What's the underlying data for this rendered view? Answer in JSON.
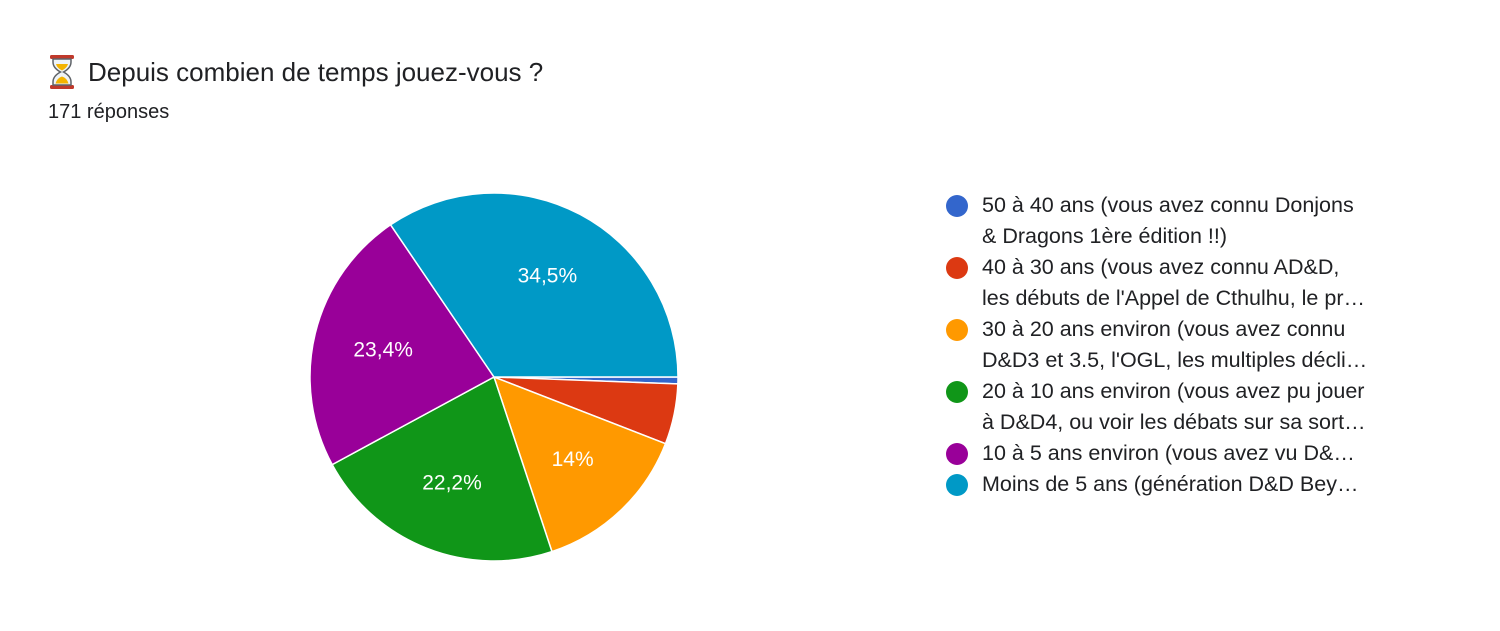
{
  "header": {
    "title": "Depuis combien de temps jouez-vous ?",
    "icon": "hourglass-icon",
    "response_count": "171 réponses"
  },
  "legend": {
    "items": [
      {
        "label": "50 à 40 ans (vous avez connu Donjons\n& Dragons 1ère édition !!)",
        "color": "#3366cc"
      },
      {
        "label": "40 à 30 ans (vous avez connu AD&D,\nles débuts de l'Appel de Cthulhu, le pr…",
        "color": "#dc3912"
      },
      {
        "label": "30 à 20 ans environ (vous avez connu\nD&D3 et 3.5, l'OGL, les multiples décli…",
        "color": "#ff9900"
      },
      {
        "label": "20 à 10 ans environ (vous avez pu jouer\nà D&D4, ou voir les débats sur sa sort…",
        "color": "#109618"
      },
      {
        "label": "10 à 5 ans environ (vous avez vu D&…",
        "color": "#990099"
      },
      {
        "label": "Moins de 5 ans (génération D&D Bey…",
        "color": "#0099c6"
      }
    ]
  },
  "chart_data": {
    "type": "pie",
    "categories": [
      "50 à 40 ans (vous avez connu Donjons & Dragons 1ère édition !!)",
      "40 à 30 ans (vous avez connu AD&D, les débuts de l'Appel de Cthulhu, le pr…",
      "30 à 20 ans environ (vous avez connu D&D3 et 3.5, l'OGL, les multiples décli…",
      "20 à 10 ans environ (vous avez pu jouer à D&D4, ou voir les débats sur sa sort…",
      "10 à 5 ans environ (vous avez vu D&…",
      "Moins de 5 ans (génération D&D Bey…"
    ],
    "values": [
      0.6,
      5.3,
      14,
      22.2,
      23.4,
      34.5
    ],
    "data_labels": [
      "",
      "",
      "14%",
      "22,2%",
      "23,4%",
      "34,5%"
    ],
    "colors": [
      "#3366cc",
      "#dc3912",
      "#ff9900",
      "#109618",
      "#990099",
      "#0099c6"
    ],
    "start": "3 o'clock",
    "direction": "clockwise",
    "legend_position": "right"
  }
}
